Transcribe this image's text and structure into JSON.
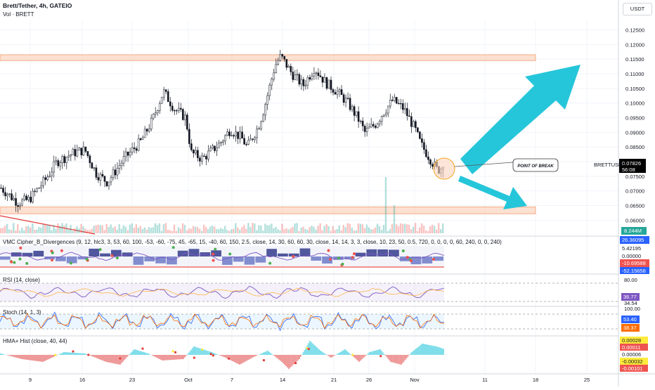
{
  "header": {
    "symbol_title": "Brett/Tether, 4h, GATEIO",
    "volume_label": "Vol · BRETT",
    "currency_button": "USDT"
  },
  "price_axis": {
    "ticks": [
      "0.12500",
      "0.12000",
      "0.11500",
      "0.11000",
      "0.10500",
      "0.10000",
      "0.09500",
      "0.09000",
      "0.08500",
      "0.08000",
      "0.07500",
      "0.07000",
      "0.06500",
      "0.06000"
    ],
    "current_price": "0.07826",
    "countdown": "56:08",
    "symbol_badge": "BRETTUSDT"
  },
  "time_axis": {
    "labels": [
      "9",
      "16",
      "23",
      "Oct",
      "7",
      "14",
      "21",
      "26",
      "Nov",
      "11",
      "18",
      "25"
    ]
  },
  "annotations": {
    "point_of_break": "POINT OF BREAK"
  },
  "volume": {
    "value_badge": "8.244M"
  },
  "indicators": {
    "vmc": {
      "title": "VMC Cipher_B_Divergences (9, 12, hlc3, 3, 53, 60, 100, -53, -60, -75, 45, -65, 15, -40, 60, 150, 2.5, close, 14, 30, 60, 60, 30, close, 14, 14, 3, 3, close, 10, 23, 50, 0.5, 720, 0, 0, 0, 0, 60, 240, 0, 0, 240)",
      "labels": [
        "26.36095",
        "5.42195",
        "0.00000",
        "-10.69588",
        "-52.15658"
      ]
    },
    "rsi": {
      "title": "RSI (14, close)",
      "labels": [
        "80.00",
        "36.77",
        "34.54"
      ]
    },
    "stoch": {
      "title": "Stoch (14, 1, 3)",
      "labels": [
        "100.00",
        "53.40",
        "38.37"
      ]
    },
    "hma": {
      "title": "HMA+ Hist (close, 40, 44)",
      "labels": [
        "0.00028",
        "0.00011",
        "0.00006",
        "-0.00032",
        "-0.00101"
      ]
    }
  },
  "colors": {
    "up": "#26a69a",
    "down": "#ef5350",
    "zone_fill": "#fbd3bd",
    "zone_stroke": "#f59b6b",
    "arrow": "#26c6da",
    "trendline": "#e53935",
    "price_badge": "#2962ff"
  },
  "chart_data": {
    "type": "candlestick",
    "title": "Brett/Tether, 4h, GATEIO",
    "ylim": [
      0.056,
      0.128
    ],
    "y_ticks": [
      0.125,
      0.12,
      0.115,
      0.11,
      0.105,
      0.1,
      0.095,
      0.09,
      0.085,
      0.08,
      0.075,
      0.07,
      0.065,
      0.06
    ],
    "x_tick_labels": [
      "9",
      "16",
      "23",
      "Oct",
      "7",
      "14",
      "21",
      "26",
      "Nov",
      "11",
      "18",
      "25"
    ],
    "price_path_anchors": [
      [
        0,
        0.071
      ],
      [
        3,
        0.066
      ],
      [
        5,
        0.067
      ],
      [
        8,
        0.074
      ],
      [
        10,
        0.08
      ],
      [
        13,
        0.083
      ],
      [
        15,
        0.084
      ],
      [
        17,
        0.076
      ],
      [
        19,
        0.073
      ],
      [
        22,
        0.081
      ],
      [
        25,
        0.087
      ],
      [
        27,
        0.094
      ],
      [
        29,
        0.104
      ],
      [
        31,
        0.098
      ],
      [
        33,
        0.095
      ],
      [
        34,
        0.083
      ],
      [
        36,
        0.081
      ],
      [
        39,
        0.086
      ],
      [
        41,
        0.091
      ],
      [
        43,
        0.088
      ],
      [
        44,
        0.085
      ],
      [
        46,
        0.092
      ],
      [
        47,
        0.098
      ],
      [
        49,
        0.113
      ],
      [
        50,
        0.116
      ],
      [
        52,
        0.11
      ],
      [
        54,
        0.106
      ],
      [
        56,
        0.112
      ],
      [
        58,
        0.107
      ],
      [
        60,
        0.104
      ],
      [
        62,
        0.1
      ],
      [
        64,
        0.094
      ],
      [
        65,
        0.09
      ],
      [
        67,
        0.093
      ],
      [
        68,
        0.096
      ],
      [
        70,
        0.101
      ],
      [
        72,
        0.098
      ],
      [
        74,
        0.091
      ],
      [
        75,
        0.086
      ],
      [
        77,
        0.08
      ],
      [
        78,
        0.077
      ],
      [
        79,
        0.0783
      ]
    ],
    "resistance_zone": [
      0.1145,
      0.1165
    ],
    "support_zone": [
      0.0622,
      0.0645
    ],
    "current_price": 0.07826,
    "annotation": "POINT OF BREAK"
  }
}
